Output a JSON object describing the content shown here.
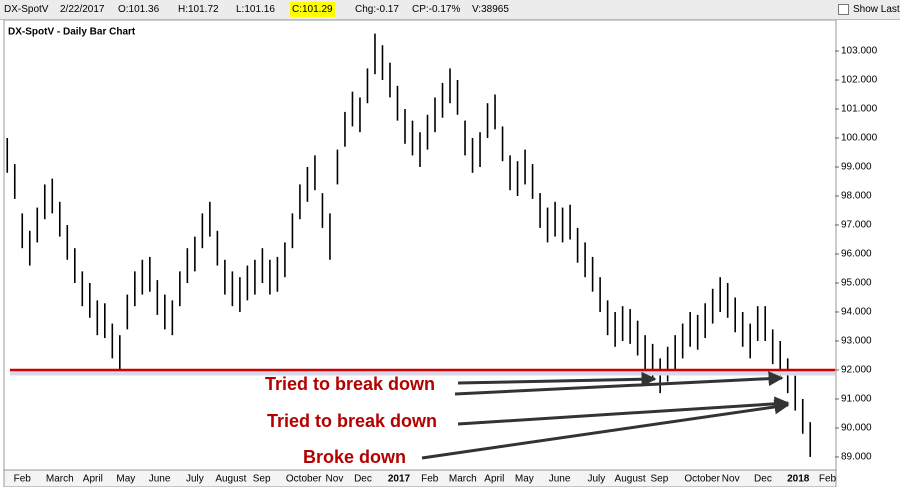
{
  "header": {
    "symbol": "DX-SpotV",
    "date": "2/22/2017",
    "open": "O:101.36",
    "high": "H:101.72",
    "low": "L:101.16",
    "close": "C:101.29",
    "change": "Chg:-0.17",
    "change_percent": "CP:-0.17%",
    "volume": "V:38965",
    "show_last": "Show Last"
  },
  "chart_data": {
    "type": "ohlc",
    "title": "DX-SpotV - Daily Bar Chart",
    "color": "#000000",
    "high": [
      100.0,
      99.1,
      97.4,
      96.8,
      97.6,
      98.4,
      98.6,
      97.8,
      97.0,
      96.2,
      95.4,
      95.0,
      94.4,
      94.3,
      93.6,
      93.2,
      94.6,
      95.4,
      95.8,
      95.9,
      95.1,
      94.6,
      94.4,
      95.4,
      96.2,
      96.6,
      97.4,
      97.8,
      96.8,
      95.8,
      95.4,
      95.2,
      95.6,
      95.8,
      96.2,
      95.8,
      95.9,
      96.4,
      97.4,
      98.4,
      99.0,
      99.4,
      98.1,
      97.4,
      99.6,
      100.9,
      101.6,
      101.4,
      102.4,
      103.6,
      103.2,
      102.6,
      101.8,
      101.0,
      100.6,
      100.2,
      100.8,
      101.4,
      101.9,
      102.4,
      102.0,
      100.6,
      100.0,
      100.2,
      101.2,
      101.5,
      100.4,
      99.4,
      99.2,
      99.6,
      99.1,
      98.1,
      97.6,
      97.8,
      97.6,
      97.7,
      96.9,
      96.4,
      95.9,
      95.2,
      94.4,
      94.0,
      94.2,
      94.1,
      93.7,
      93.2,
      92.9,
      92.4,
      92.8,
      93.2,
      93.6,
      94.0,
      93.9,
      94.3,
      94.8,
      95.2,
      95.0,
      94.5,
      94.0,
      93.6,
      94.2,
      94.2,
      93.4,
      93.0,
      92.4,
      91.8,
      91.0,
      90.2
    ],
    "low": [
      98.8,
      97.9,
      96.2,
      95.6,
      96.4,
      97.2,
      97.4,
      96.6,
      95.8,
      95.0,
      94.2,
      93.8,
      93.2,
      93.1,
      92.4,
      91.9,
      93.4,
      94.2,
      94.6,
      94.7,
      93.9,
      93.4,
      93.2,
      94.2,
      95.0,
      95.4,
      96.2,
      96.6,
      95.6,
      94.6,
      94.2,
      94.0,
      94.4,
      94.6,
      95.0,
      94.6,
      94.7,
      95.2,
      96.2,
      97.2,
      97.8,
      98.2,
      96.9,
      95.8,
      98.4,
      99.7,
      100.4,
      100.2,
      101.2,
      102.2,
      102.0,
      101.4,
      100.6,
      99.8,
      99.4,
      99.0,
      99.6,
      100.2,
      100.7,
      101.2,
      100.8,
      99.4,
      98.8,
      99.0,
      100.0,
      100.3,
      99.2,
      98.2,
      98.0,
      98.4,
      97.9,
      96.9,
      96.4,
      96.6,
      96.4,
      96.5,
      95.7,
      95.2,
      94.7,
      94.0,
      93.2,
      92.8,
      93.0,
      92.9,
      92.5,
      92.0,
      91.7,
      91.2,
      91.6,
      92.0,
      92.4,
      92.8,
      92.7,
      93.1,
      93.6,
      94.0,
      93.8,
      93.3,
      92.8,
      92.4,
      93.0,
      93.0,
      92.2,
      91.8,
      91.2,
      90.6,
      89.8,
      89.0
    ],
    "xlim": [
      -0.3,
      110.3
    ],
    "xticks": [
      {
        "value": 2,
        "label": "Feb"
      },
      {
        "value": 7,
        "label": "March"
      },
      {
        "value": 11.4,
        "label": "April"
      },
      {
        "value": 15.8,
        "label": "May"
      },
      {
        "value": 20.3,
        "label": "June"
      },
      {
        "value": 25,
        "label": "July"
      },
      {
        "value": 29.8,
        "label": "August"
      },
      {
        "value": 33.9,
        "label": "Sep"
      },
      {
        "value": 39.5,
        "label": "October"
      },
      {
        "value": 43.6,
        "label": "Nov"
      },
      {
        "value": 47.4,
        "label": "Dec"
      },
      {
        "value": 52.2,
        "label": "2017",
        "bold": true
      },
      {
        "value": 56.3,
        "label": "Feb"
      },
      {
        "value": 60.7,
        "label": "March"
      },
      {
        "value": 64.9,
        "label": "April"
      },
      {
        "value": 68.9,
        "label": "May"
      },
      {
        "value": 73.6,
        "label": "June"
      },
      {
        "value": 78.5,
        "label": "July"
      },
      {
        "value": 83,
        "label": "August"
      },
      {
        "value": 86.9,
        "label": "Sep"
      },
      {
        "value": 92.6,
        "label": "October"
      },
      {
        "value": 96.4,
        "label": "Nov"
      },
      {
        "value": 100.7,
        "label": "Dec"
      },
      {
        "value": 105.4,
        "label": "2018",
        "bold": true
      },
      {
        "value": 109.3,
        "label": "Feb"
      }
    ],
    "ylim": [
      88.55,
      104.07
    ],
    "yticks": [
      {
        "value": 89,
        "label": "89.000"
      },
      {
        "value": 90,
        "label": "90.000"
      },
      {
        "value": 91,
        "label": "91.000"
      },
      {
        "value": 92,
        "label": "92.000"
      },
      {
        "value": 93,
        "label": "93.000"
      },
      {
        "value": 94,
        "label": "94.000"
      },
      {
        "value": 95,
        "label": "95.000"
      },
      {
        "value": 96,
        "label": "96.000"
      },
      {
        "value": 97,
        "label": "97.000"
      },
      {
        "value": 98,
        "label": "98.000"
      },
      {
        "value": 99,
        "label": "99.000"
      },
      {
        "value": 100,
        "label": "100.000"
      },
      {
        "value": 101,
        "label": "101.000"
      },
      {
        "value": 102,
        "label": "102.000"
      },
      {
        "value": 103,
        "label": "103.000"
      }
    ],
    "support_level": 92,
    "annotations": [
      "Tried to break down",
      "Tried to break down",
      "Broke down"
    ]
  }
}
